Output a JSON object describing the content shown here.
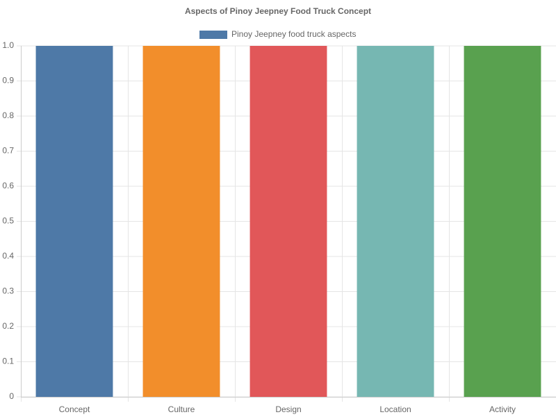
{
  "chart_data": {
    "type": "bar",
    "title": "Aspects of Pinoy Jeepney Food Truck Concept",
    "categories": [
      "Concept",
      "Culture",
      "Design",
      "Location",
      "Activity"
    ],
    "series": [
      {
        "name": "Pinoy Jeepney food truck aspects",
        "colors": [
          "#4e79a7",
          "#f28e2b",
          "#e15759",
          "#76b7b2",
          "#59a14f"
        ],
        "values": [
          1,
          1,
          1,
          1,
          1
        ]
      }
    ],
    "ylim": [
      0,
      1
    ],
    "yticks": [
      0,
      0.1,
      0.2,
      0.3,
      0.4,
      0.5,
      0.6,
      0.7,
      0.8,
      0.9,
      {
        "value": 1,
        "label": "1.0"
      }
    ],
    "grid": true,
    "legend": "top"
  }
}
